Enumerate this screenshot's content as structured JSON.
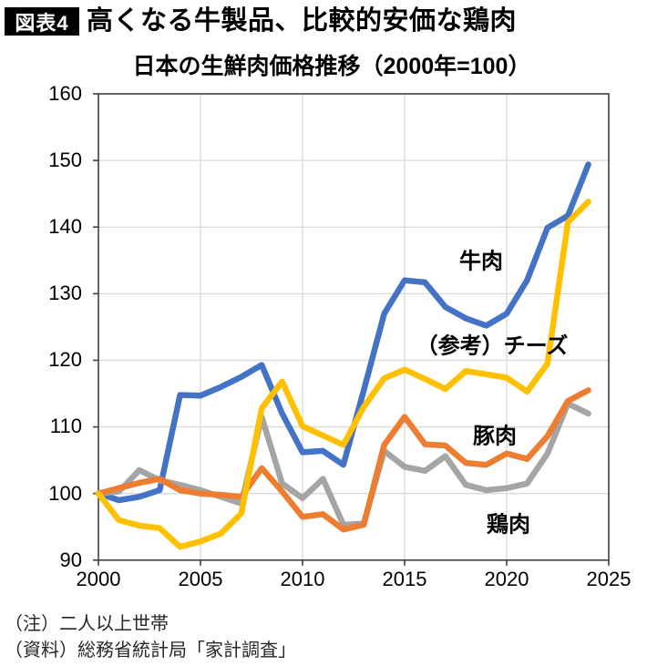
{
  "header": {
    "tag": "図表4",
    "title": "高くなる牛製品、比較的安価な鶏肉"
  },
  "chart_data": {
    "type": "line",
    "title": "日本の生鮮肉価格推移（2000年=100）",
    "xlabel": "",
    "ylabel": "",
    "xlim": [
      2000,
      2025
    ],
    "ylim": [
      90,
      160
    ],
    "grid": true,
    "legend": "inline-labels",
    "x": [
      2000,
      2001,
      2002,
      2003,
      2004,
      2005,
      2006,
      2007,
      2008,
      2009,
      2010,
      2011,
      2012,
      2013,
      2014,
      2015,
      2016,
      2017,
      2018,
      2019,
      2020,
      2021,
      2022,
      2023,
      2024
    ],
    "x_ticks": [
      "2000",
      "2005",
      "2010",
      "2015",
      "2020",
      "2025"
    ],
    "y_ticks": [
      "160",
      "150",
      "140",
      "130",
      "120",
      "110",
      "100",
      "90"
    ],
    "series": [
      {
        "name": "牛肉",
        "color": "#4472C4",
        "values": [
          100,
          99,
          99.5,
          100.5,
          114.8,
          114.7,
          116,
          117.5,
          119.3,
          112,
          106.2,
          106.4,
          104.3,
          115.5,
          127,
          132,
          131.7,
          128,
          126.3,
          125.2,
          127,
          132,
          139.9,
          141.7,
          149.4
        ]
      },
      {
        "name": "鶏肉",
        "color": "#A5A5A5",
        "values": [
          100,
          100.3,
          103.5,
          102,
          101.3,
          100.5,
          99.5,
          98.5,
          111.5,
          101.5,
          99.3,
          102.2,
          95.3,
          95.5,
          106.4,
          104,
          103.4,
          105.6,
          101.3,
          100.5,
          100.8,
          101.5,
          106,
          113.5,
          112
        ]
      },
      {
        "name": "豚肉",
        "color": "#ED7D31",
        "values": [
          100,
          100.8,
          101.6,
          102.2,
          100.5,
          100,
          99.8,
          99.5,
          103.8,
          100.3,
          96.5,
          96.9,
          94.6,
          95.3,
          107.3,
          111.5,
          107.4,
          107.2,
          104.6,
          104.3,
          106,
          105.2,
          108.6,
          113.9,
          115.5
        ]
      },
      {
        "name": "（参考）チーズ",
        "color": "#FFC000",
        "values": [
          100,
          96,
          95.2,
          94.8,
          92,
          92.8,
          94,
          97,
          112.8,
          116.8,
          110.1,
          108.7,
          107.3,
          113,
          117.3,
          118.6,
          117.2,
          115.7,
          118.4,
          117.9,
          117.4,
          115.3,
          119.5,
          140.7,
          143.8
        ]
      }
    ]
  },
  "inline_labels": {
    "beef": "牛肉",
    "cheese": "（参考）チーズ",
    "pork": "豚肉",
    "chicken": "鶏肉"
  },
  "notes": {
    "note": "（注）二人以上世帯",
    "source": "（資料）総務省統計局「家計調査」"
  },
  "style_colors": {
    "gridline": "#D9D9D9",
    "axis": "#404040",
    "tag_background": "#000000",
    "tag_text": "#FFFFFF"
  }
}
